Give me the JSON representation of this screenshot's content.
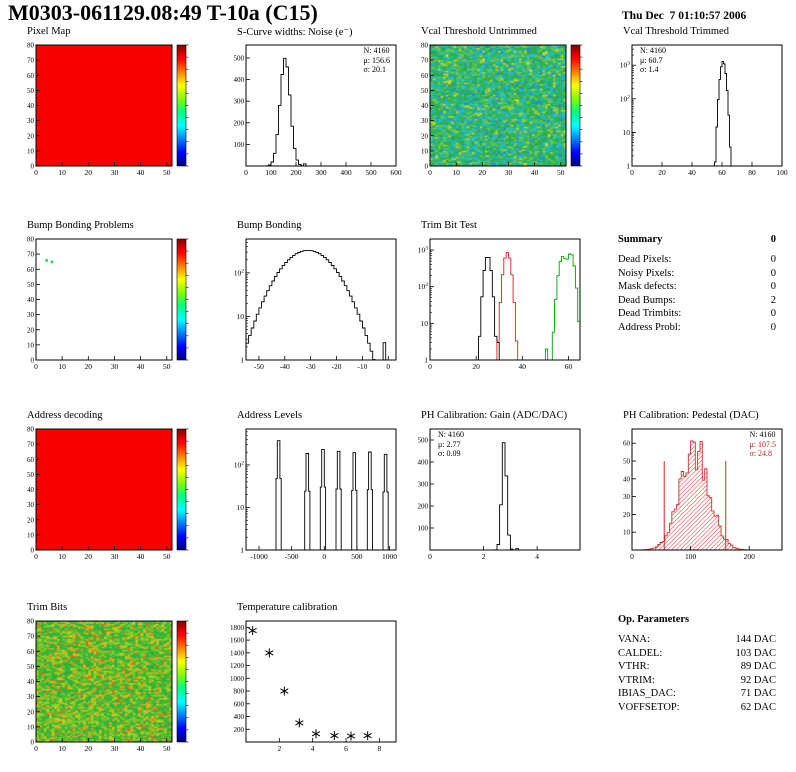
{
  "header": {
    "title": "M0303-061129.08:49 T-10a (C15)",
    "datetime": "Thu Dec  7 01:10:57 2006"
  },
  "summary": {
    "title": "Summary",
    "value": "0",
    "rows": [
      {
        "label": "Dead Pixels:",
        "value": "0"
      },
      {
        "label": "Noisy Pixels:",
        "value": "0"
      },
      {
        "label": "Mask defects:",
        "value": "0"
      },
      {
        "label": "Dead Bumps:",
        "value": "2"
      },
      {
        "label": "Dead Trimbits:",
        "value": "0"
      },
      {
        "label": "Address Probl:",
        "value": "0"
      }
    ]
  },
  "op_parameters": {
    "title": "Op. Parameters",
    "rows": [
      {
        "label": "VANA:",
        "value": "144 DAC"
      },
      {
        "label": "CALDEL:",
        "value": "103 DAC"
      },
      {
        "label": "VTHR:",
        "value": "89 DAC"
      },
      {
        "label": "VTRIM:",
        "value": "92 DAC"
      },
      {
        "label": "IBIAS_DAC:",
        "value": "71 DAC"
      },
      {
        "label": "VOFFSETOP:",
        "value": "62 DAC"
      }
    ]
  },
  "chart_data": [
    {
      "type": "heatmap",
      "title": "Pixel Map",
      "fill": "uniform",
      "fill_color": "#f80000",
      "xlim": [
        0,
        52
      ],
      "ylim": [
        0,
        80
      ],
      "xticks": [
        0,
        10,
        20,
        30,
        40,
        50
      ],
      "yticks": [
        0,
        10,
        20,
        30,
        40,
        50,
        60,
        70,
        80
      ],
      "colorbar": {
        "stops": [
          "#7f0000",
          "#ff0000",
          "#ff7f00",
          "#ffff00",
          "#7fff00",
          "#00ff7f",
          "#00ffff",
          "#007fff",
          "#0000ff",
          "#00007f"
        ]
      }
    },
    {
      "type": "histogram",
      "title": "S-Curve widths: Noise (e⁻)",
      "xlim": [
        0,
        600
      ],
      "xticks": [
        0,
        100,
        200,
        300,
        400,
        500,
        600
      ],
      "ylim": [
        0,
        560
      ],
      "yticks": [
        100,
        200,
        300,
        400,
        500
      ],
      "bin_width": 10,
      "series": [
        {
          "color": "#000000",
          "gaussians": [
            {
              "mean": 156.6,
              "sigma": 20.1,
              "peak": 500
            }
          ],
          "bins": [
            {
              "x": 235,
              "h": 10
            }
          ]
        }
      ],
      "stats_lines": [
        "N: 4160",
        "μ: 156.6",
        "σ: 20.1"
      ],
      "stats_pos": "right"
    },
    {
      "type": "heatmap",
      "title": "Vcal Threshold Untrimmed",
      "fill": "noise",
      "seed": 7,
      "grid": [
        52,
        80
      ],
      "noise_palette": [
        [
          "#2db04a",
          0.3
        ],
        [
          "#27b887",
          0.2
        ],
        [
          "#29bdbd",
          0.22
        ],
        [
          "#7ecb2f",
          0.12
        ],
        [
          "#2d89cf",
          0.06
        ],
        [
          "#d8d820",
          0.06
        ],
        [
          "#1f9e68",
          0.04
        ]
      ],
      "xlim": [
        0,
        52
      ],
      "ylim": [
        0,
        80
      ],
      "xticks": [
        0,
        10,
        20,
        30,
        40,
        50
      ],
      "yticks": [
        0,
        10,
        20,
        30,
        40,
        50,
        60,
        70,
        80
      ],
      "colorbar": {
        "stops": [
          "#7f0000",
          "#ff0000",
          "#ff7f00",
          "#ffff00",
          "#7fff00",
          "#00ff7f",
          "#00ffff",
          "#007fff",
          "#0000ff",
          "#00007f"
        ]
      }
    },
    {
      "type": "histogram",
      "title": "Vcal Threshold Trimmed",
      "xlim": [
        0,
        100
      ],
      "xticks": [
        0,
        20,
        40,
        60,
        80,
        100
      ],
      "logy": true,
      "ylog": [
        1,
        4000
      ],
      "bin_width": 1,
      "series": [
        {
          "color": "#000000",
          "gaussians": [
            {
              "mean": 60.7,
              "sigma": 1.4,
              "peak": 1300
            }
          ]
        }
      ],
      "stats_lines": [
        "N: 4160",
        "μ: 60.7",
        "σ: 1.4"
      ],
      "stats_pos": "left"
    },
    {
      "type": "heatmap",
      "title": "Bump Bonding Problems",
      "fill": "empty",
      "points": [
        {
          "x": 4,
          "y": 66,
          "color": "#00c832"
        },
        {
          "x": 6,
          "y": 65,
          "color": "#00c832"
        }
      ],
      "xlim": [
        0,
        52
      ],
      "ylim": [
        0,
        80
      ],
      "xticks": [
        0,
        10,
        20,
        30,
        40,
        50
      ],
      "yticks": [
        0,
        10,
        20,
        30,
        40,
        50,
        60,
        70,
        80
      ],
      "colorbar": {
        "stops": [
          "#7f0000",
          "#ff0000",
          "#ff7f00",
          "#ffff00",
          "#7fff00",
          "#00ff7f",
          "#00ffff",
          "#007fff",
          "#0000ff",
          "#00007f"
        ]
      }
    },
    {
      "type": "histogram",
      "title": "Bump Bonding",
      "xlim": [
        -55,
        3
      ],
      "xticks": [
        -50,
        -40,
        -30,
        -20,
        -10,
        0
      ],
      "logy": true,
      "ylog": [
        1,
        600
      ],
      "bin_width": 1,
      "series": [
        {
          "color": "#000000",
          "gaussians": [
            {
              "mean": -31,
              "sigma": 7.5,
              "peak": 330
            }
          ],
          "bins": [
            {
              "x": -1.5,
              "h": 2.5
            }
          ]
        }
      ]
    },
    {
      "type": "histogram",
      "title": "Trim Bit Test",
      "xlim": [
        0,
        65
      ],
      "xticks": [
        0,
        20,
        40,
        60
      ],
      "logy": true,
      "ylog": [
        1,
        2000
      ],
      "bin_width": 1,
      "series": [
        {
          "color": "#000000",
          "gaussians": [
            {
              "mean": 25,
              "sigma": 1.1,
              "peak": 700
            }
          ],
          "bins": [
            {
              "x": 21,
              "h": 2
            },
            {
              "x": 29,
              "h": 3
            },
            {
              "x": 31,
              "h": 1
            }
          ]
        },
        {
          "color": "#d42020",
          "gaussians": [
            {
              "mean": 33.5,
              "sigma": 1.2,
              "peak": 850
            }
          ]
        },
        {
          "color": "#00a000",
          "gaussians": [
            {
              "mean": 57.5,
              "sigma": 1.3,
              "peak": 650
            },
            {
              "mean": 61,
              "sigma": 1.2,
              "peak": 800
            }
          ],
          "bins": [
            {
              "x": 48,
              "h": 1
            },
            {
              "x": 50,
              "h": 2
            },
            {
              "x": 52,
              "h": 1
            },
            {
              "x": 53,
              "h": 2
            }
          ]
        }
      ]
    },
    {
      "type": "heatmap",
      "title": "Address decoding",
      "fill": "uniform",
      "fill_color": "#f80000",
      "xlim": [
        0,
        52
      ],
      "ylim": [
        0,
        80
      ],
      "xticks": [
        0,
        10,
        20,
        30,
        40,
        50
      ],
      "yticks": [
        0,
        10,
        20,
        30,
        40,
        50,
        60,
        70,
        80
      ],
      "colorbar": {
        "stops": [
          "#7f0000",
          "#ff0000",
          "#ff7f00",
          "#ffff00",
          "#7fff00",
          "#00ff7f",
          "#00ffff",
          "#007fff",
          "#0000ff",
          "#00007f"
        ]
      }
    },
    {
      "type": "histogram",
      "title": "Address Levels",
      "xlim": [
        -1200,
        1100
      ],
      "xticks": [
        -1000,
        -500,
        0,
        500,
        1000
      ],
      "logy": true,
      "ylog": [
        1,
        700
      ],
      "bin_width": 20,
      "series": [
        {
          "color": "#000000",
          "gaussians": [
            {
              "mean": -700,
              "sigma": 14,
              "peak": 480
            },
            {
              "mean": -260,
              "sigma": 14,
              "peak": 240
            },
            {
              "mean": -20,
              "sigma": 14,
              "peak": 300
            },
            {
              "mean": 220,
              "sigma": 14,
              "peak": 270
            },
            {
              "mean": 460,
              "sigma": 14,
              "peak": 250
            },
            {
              "mean": 700,
              "sigma": 14,
              "peak": 260
            },
            {
              "mean": 940,
              "sigma": 14,
              "peak": 230
            }
          ]
        }
      ]
    },
    {
      "type": "histogram",
      "title": "PH Calibration: Gain (ADC/DAC)",
      "xlim": [
        0,
        5.6
      ],
      "xticks": [
        0,
        2,
        4
      ],
      "ylim": [
        0,
        550
      ],
      "yticks": [
        100,
        200,
        300,
        400,
        500
      ],
      "bin_width": 0.1,
      "series": [
        {
          "color": "#000000",
          "gaussians": [
            {
              "mean": 2.77,
              "sigma": 0.09,
              "peak": 500
            }
          ],
          "bins": [
            {
              "x": 3.3,
              "h": 6
            }
          ]
        }
      ],
      "stats_lines": [
        "N: 4160",
        "μ: 2.77",
        "σ: 0.09"
      ],
      "stats_pos": "left"
    },
    {
      "type": "histogram",
      "title": "PH Calibration: Pedestal (DAC)",
      "xlim": [
        0,
        256
      ],
      "xticks": [
        0,
        100,
        200
      ],
      "ylim": [
        0,
        68
      ],
      "yticks": [
        10,
        20,
        30,
        40,
        50,
        60
      ],
      "bin_width": 4,
      "jitter": 0.22,
      "series": [
        {
          "color": "#c83232",
          "fill": "hatch",
          "gaussians": [
            {
              "mean": 107.5,
              "sigma": 24.8,
              "peak": 58
            }
          ]
        }
      ],
      "vlines": [
        55,
        160
      ],
      "stats_lines": [
        "N: 4160",
        "μ: 107.5",
        "σ: 24.8"
      ],
      "stats_pos": "right",
      "stats_red": true
    },
    {
      "type": "heatmap",
      "title": "Trim Bits",
      "fill": "noise",
      "seed": 13,
      "grid": [
        52,
        80
      ],
      "noise_palette": [
        [
          "#2fb23c",
          0.38
        ],
        [
          "#57bd2e",
          0.22
        ],
        [
          "#8fcf26",
          0.16
        ],
        [
          "#c8d01e",
          0.1
        ],
        [
          "#f0a51c",
          0.09
        ],
        [
          "#ef6712",
          0.05
        ]
      ],
      "xlim": [
        0,
        52
      ],
      "ylim": [
        0,
        80
      ],
      "xticks": [
        0,
        10,
        20,
        30,
        40,
        50
      ],
      "yticks": [
        0,
        10,
        20,
        30,
        40,
        50,
        60,
        70,
        80
      ],
      "colorbar": {
        "stops": [
          "#7f0000",
          "#ff0000",
          "#ff7f00",
          "#ffff00",
          "#7fff00",
          "#00ff7f",
          "#00ffff",
          "#007fff",
          "#0000ff",
          "#00007f"
        ]
      }
    },
    {
      "type": "scatter",
      "title": "Temperature calibration",
      "xlim": [
        0,
        9
      ],
      "xticks": [
        2,
        4,
        6,
        8
      ],
      "ylim": [
        0,
        1900
      ],
      "yticks": [
        200,
        400,
        600,
        800,
        1000,
        1200,
        1400,
        1600,
        1800
      ],
      "marker": "asterisk",
      "points": [
        [
          0.4,
          1750
        ],
        [
          1.4,
          1400
        ],
        [
          2.3,
          800
        ],
        [
          3.2,
          300
        ],
        [
          4.2,
          130
        ],
        [
          5.3,
          100
        ],
        [
          6.3,
          95
        ],
        [
          7.3,
          100
        ]
      ]
    }
  ]
}
